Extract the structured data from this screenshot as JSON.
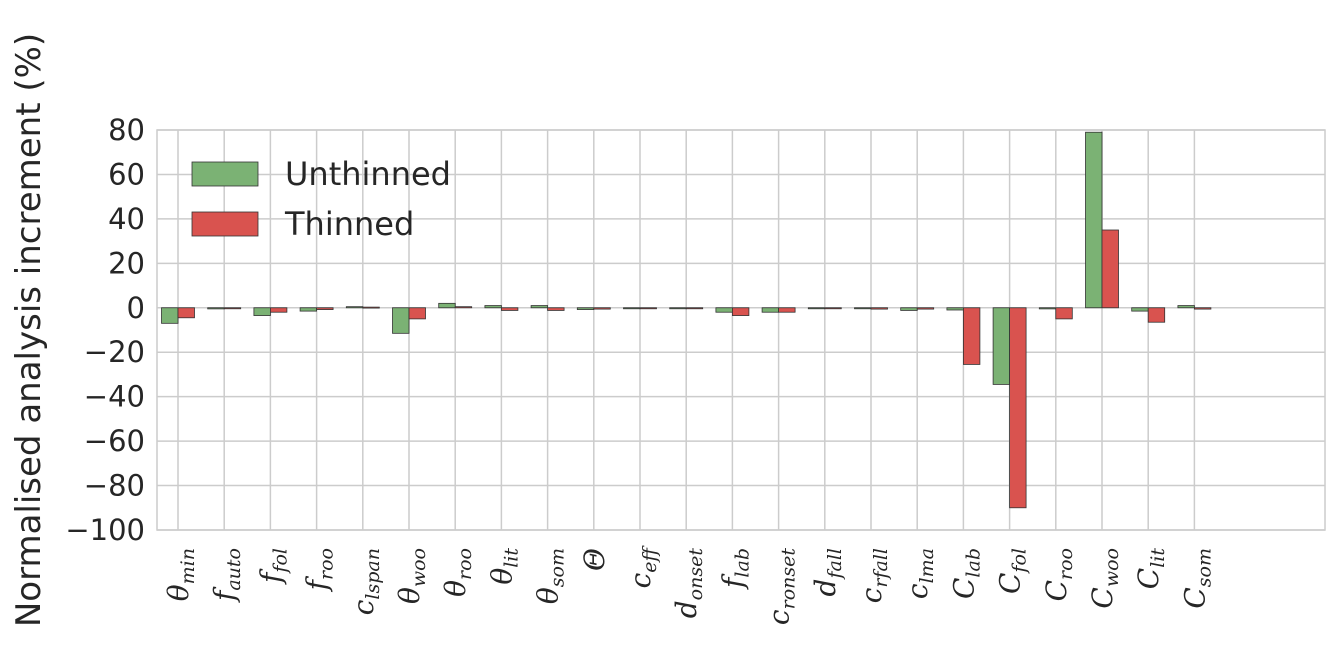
{
  "chart_data": {
    "type": "bar",
    "ylabel": "Normalised analysis increment (%)",
    "ylim": [
      -100,
      80
    ],
    "yticks": [
      80,
      60,
      40,
      20,
      0,
      -20,
      -40,
      -60,
      -80,
      -100
    ],
    "ytick_labels": [
      "80",
      "60",
      "40",
      "20",
      "0",
      "−20",
      "−40",
      "−60",
      "−80",
      "−100"
    ],
    "grid": true,
    "legend_position": "top-left",
    "categories": [
      {
        "base": "θ",
        "sub": "min"
      },
      {
        "base": "f",
        "sub": "auto"
      },
      {
        "base": "f",
        "sub": "fol"
      },
      {
        "base": "f",
        "sub": "roo"
      },
      {
        "base": "c",
        "sub": "lspan"
      },
      {
        "base": "θ",
        "sub": "woo"
      },
      {
        "base": "θ",
        "sub": "roo"
      },
      {
        "base": "θ",
        "sub": "lit"
      },
      {
        "base": "θ",
        "sub": "som"
      },
      {
        "base": "Θ",
        "sub": ""
      },
      {
        "base": "c",
        "sub": "eff"
      },
      {
        "base": "d",
        "sub": "onset"
      },
      {
        "base": "f",
        "sub": "lab"
      },
      {
        "base": "c",
        "sub": "ronset"
      },
      {
        "base": "d",
        "sub": "fall"
      },
      {
        "base": "c",
        "sub": "rfall"
      },
      {
        "base": "c",
        "sub": "lma"
      },
      {
        "base": "C",
        "sub": "lab"
      },
      {
        "base": "C",
        "sub": "fol"
      },
      {
        "base": "C",
        "sub": "roo"
      },
      {
        "base": "C",
        "sub": "woo"
      },
      {
        "base": "C",
        "sub": "lit"
      },
      {
        "base": "C",
        "sub": "som"
      }
    ],
    "series": [
      {
        "name": "Unthinned",
        "color": "#7bb274",
        "values": [
          -7,
          -0.5,
          -3.5,
          -1.5,
          0.5,
          -11.5,
          2,
          1,
          1,
          -0.8,
          -0.4,
          -0.3,
          -2,
          -2,
          -0.3,
          -0.4,
          -1.2,
          -1,
          -34.5,
          -0.5,
          79,
          -1.5,
          1
        ]
      },
      {
        "name": "Thinned",
        "color": "#d9534f",
        "values": [
          -4.5,
          -0.3,
          -2,
          -0.8,
          0.3,
          -5,
          0.5,
          -1.2,
          -1.2,
          -0.6,
          -0.3,
          -0.3,
          -3.5,
          -2,
          -0.3,
          -0.6,
          -0.6,
          -25.5,
          -90,
          -5,
          35,
          -6.5,
          -0.6
        ]
      }
    ]
  }
}
